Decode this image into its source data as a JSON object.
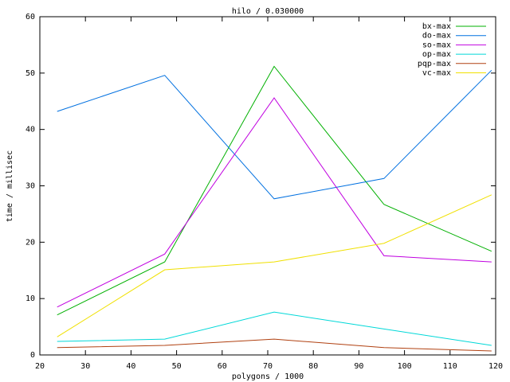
{
  "chart_data": {
    "type": "line",
    "title": "hilo / 0.030000",
    "x_label": "polygons / 1000",
    "y_label": "time / millisec",
    "x": [
      23.8,
      47.4,
      71.4,
      95.5,
      119.1
    ],
    "series": [
      {
        "name": "bx-max",
        "color": "#00b000",
        "values": [
          7.1,
          16.5,
          51.2,
          26.7,
          18.4
        ]
      },
      {
        "name": "do-max",
        "color": "#0070e0",
        "values": [
          43.2,
          49.6,
          27.7,
          31.3,
          50.5
        ]
      },
      {
        "name": "so-max",
        "color": "#c000e0",
        "values": [
          8.5,
          17.9,
          45.6,
          17.6,
          16.5
        ]
      },
      {
        "name": "op-max",
        "color": "#00d8d8",
        "values": [
          2.4,
          2.8,
          7.6,
          4.6,
          1.7
        ]
      },
      {
        "name": "pqp-max",
        "color": "#b04010",
        "values": [
          1.3,
          1.7,
          2.8,
          1.3,
          0.7
        ]
      },
      {
        "name": "vc-max",
        "color": "#f0e000",
        "values": [
          3.2,
          15.1,
          16.5,
          19.8,
          28.4
        ]
      }
    ],
    "xlim": [
      20,
      120
    ],
    "xticks": [
      20,
      30,
      40,
      50,
      60,
      70,
      80,
      90,
      100,
      110,
      120
    ],
    "ylim": [
      0,
      60
    ],
    "yticks": [
      0,
      10,
      20,
      30,
      40,
      50,
      60
    ],
    "legend": "top-right"
  }
}
